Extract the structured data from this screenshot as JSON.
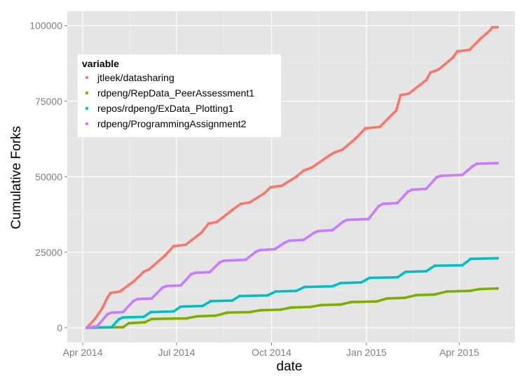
{
  "chart_data": {
    "type": "line",
    "xlabel": "date",
    "ylabel": "Cumulative Forks",
    "x_ticks": [
      {
        "label": "Apr 2014",
        "date": "2014-04-01"
      },
      {
        "label": "Jul 2014",
        "date": "2014-07-01"
      },
      {
        "label": "Oct 2014",
        "date": "2014-10-01"
      },
      {
        "label": "Jan 2015",
        "date": "2015-01-01"
      },
      {
        "label": "Apr 2015",
        "date": "2015-04-01"
      }
    ],
    "y_ticks": [
      {
        "label": "0",
        "value": 0
      },
      {
        "label": "25000",
        "value": 25000
      },
      {
        "label": "50000",
        "value": 50000
      },
      {
        "label": "75000",
        "value": 75000
      },
      {
        "label": "100000",
        "value": 100000
      }
    ],
    "xlim": [
      "2014-03-17",
      "2015-05-25"
    ],
    "ylim": [
      -4900,
      104800
    ],
    "grid": true,
    "legend": {
      "title": "variable",
      "position": "top-left"
    },
    "series": [
      {
        "name": "jtleek/datasharing",
        "color": "#F8766D",
        "points": [
          [
            "2014-04-05",
            0
          ],
          [
            "2014-04-13",
            3000
          ],
          [
            "2014-04-20",
            6500
          ],
          [
            "2014-04-25",
            10000
          ],
          [
            "2014-04-28",
            11500
          ],
          [
            "2014-05-07",
            12000
          ],
          [
            "2014-05-21",
            15500
          ],
          [
            "2014-05-30",
            18500
          ],
          [
            "2014-06-05",
            19500
          ],
          [
            "2014-06-20",
            24000
          ],
          [
            "2014-06-28",
            27000
          ],
          [
            "2014-07-10",
            27500
          ],
          [
            "2014-07-25",
            31500
          ],
          [
            "2014-08-01",
            34500
          ],
          [
            "2014-08-09",
            35000
          ],
          [
            "2014-08-24",
            39000
          ],
          [
            "2014-09-01",
            41000
          ],
          [
            "2014-09-10",
            41500
          ],
          [
            "2014-09-24",
            44500
          ],
          [
            "2014-09-30",
            46500
          ],
          [
            "2014-10-11",
            47000
          ],
          [
            "2014-10-25",
            50000
          ],
          [
            "2014-11-01",
            52000
          ],
          [
            "2014-11-09",
            53000
          ],
          [
            "2014-11-26",
            57000
          ],
          [
            "2014-12-01",
            58000
          ],
          [
            "2014-12-09",
            59000
          ],
          [
            "2014-12-21",
            62500
          ],
          [
            "2014-12-31",
            66000
          ],
          [
            "2015-01-14",
            66500
          ],
          [
            "2015-01-30",
            72000
          ],
          [
            "2015-02-03",
            77000
          ],
          [
            "2015-02-11",
            77500
          ],
          [
            "2015-02-28",
            82000
          ],
          [
            "2015-03-04",
            84500
          ],
          [
            "2015-03-12",
            85500
          ],
          [
            "2015-03-26",
            89500
          ],
          [
            "2015-03-30",
            91500
          ],
          [
            "2015-04-11",
            92000
          ],
          [
            "2015-04-21",
            95500
          ],
          [
            "2015-05-01",
            98500
          ],
          [
            "2015-05-03",
            99500
          ],
          [
            "2015-05-08",
            99500
          ]
        ]
      },
      {
        "name": "rdpeng/RepData_PeerAssessment1",
        "color": "#7CAE00",
        "points": [
          [
            "2014-04-05",
            0
          ],
          [
            "2014-05-10",
            200
          ],
          [
            "2014-05-16",
            1500
          ],
          [
            "2014-05-31",
            1800
          ],
          [
            "2014-06-07",
            2900
          ],
          [
            "2014-07-11",
            3100
          ],
          [
            "2014-07-21",
            3800
          ],
          [
            "2014-08-08",
            4000
          ],
          [
            "2014-08-19",
            5000
          ],
          [
            "2014-09-10",
            5200
          ],
          [
            "2014-09-20",
            5800
          ],
          [
            "2014-10-10",
            6000
          ],
          [
            "2014-10-20",
            6700
          ],
          [
            "2014-11-08",
            6900
          ],
          [
            "2014-11-18",
            7500
          ],
          [
            "2014-12-07",
            7700
          ],
          [
            "2014-12-17",
            8500
          ],
          [
            "2015-01-11",
            8700
          ],
          [
            "2015-01-21",
            9700
          ],
          [
            "2015-02-07",
            9900
          ],
          [
            "2015-02-18",
            10800
          ],
          [
            "2015-03-08",
            11000
          ],
          [
            "2015-03-20",
            12000
          ],
          [
            "2015-04-11",
            12200
          ],
          [
            "2015-04-21",
            12800
          ],
          [
            "2015-05-08",
            13000
          ]
        ]
      },
      {
        "name": "repos/rdpeng/ExData_Plotting1",
        "color": "#00BFC4",
        "points": [
          [
            "2014-04-05",
            0
          ],
          [
            "2014-04-29",
            200
          ],
          [
            "2014-05-06",
            2800
          ],
          [
            "2014-05-10",
            3400
          ],
          [
            "2014-05-30",
            3600
          ],
          [
            "2014-06-06",
            5200
          ],
          [
            "2014-06-28",
            5400
          ],
          [
            "2014-07-05",
            7000
          ],
          [
            "2014-07-26",
            7200
          ],
          [
            "2014-08-03",
            8800
          ],
          [
            "2014-08-24",
            9000
          ],
          [
            "2014-08-31",
            10500
          ],
          [
            "2014-09-27",
            10700
          ],
          [
            "2014-10-05",
            12000
          ],
          [
            "2014-10-25",
            12200
          ],
          [
            "2014-11-02",
            13500
          ],
          [
            "2014-11-29",
            13700
          ],
          [
            "2014-12-07",
            14800
          ],
          [
            "2014-12-27",
            15000
          ],
          [
            "2015-01-04",
            16500
          ],
          [
            "2015-01-31",
            16700
          ],
          [
            "2015-02-08",
            18500
          ],
          [
            "2015-02-28",
            18700
          ],
          [
            "2015-03-08",
            20500
          ],
          [
            "2015-04-04",
            20700
          ],
          [
            "2015-04-12",
            22800
          ],
          [
            "2015-05-08",
            23000
          ]
        ]
      },
      {
        "name": "rdpeng/ProgrammingAssignment2",
        "color": "#C77CFF",
        "points": [
          [
            "2014-04-05",
            0
          ],
          [
            "2014-04-15",
            500
          ],
          [
            "2014-04-25",
            4500
          ],
          [
            "2014-04-29",
            5000
          ],
          [
            "2014-05-10",
            5200
          ],
          [
            "2014-05-20",
            8800
          ],
          [
            "2014-05-24",
            9500
          ],
          [
            "2014-06-07",
            9700
          ],
          [
            "2014-06-17",
            13200
          ],
          [
            "2014-06-21",
            13800
          ],
          [
            "2014-07-05",
            14000
          ],
          [
            "2014-07-15",
            17700
          ],
          [
            "2014-07-19",
            18200
          ],
          [
            "2014-08-02",
            18400
          ],
          [
            "2014-08-12",
            21700
          ],
          [
            "2014-08-16",
            22200
          ],
          [
            "2014-09-06",
            22500
          ],
          [
            "2014-09-16",
            25200
          ],
          [
            "2014-09-20",
            25700
          ],
          [
            "2014-10-04",
            26000
          ],
          [
            "2014-10-14",
            28200
          ],
          [
            "2014-10-18",
            28800
          ],
          [
            "2014-11-01",
            29100
          ],
          [
            "2014-11-11",
            31400
          ],
          [
            "2014-11-15",
            32000
          ],
          [
            "2014-11-29",
            32300
          ],
          [
            "2014-12-09",
            35000
          ],
          [
            "2014-12-13",
            35700
          ],
          [
            "2015-01-03",
            36000
          ],
          [
            "2015-01-13",
            40300
          ],
          [
            "2015-01-17",
            41000
          ],
          [
            "2015-01-31",
            41300
          ],
          [
            "2015-02-10",
            45000
          ],
          [
            "2015-02-14",
            45700
          ],
          [
            "2015-02-28",
            46000
          ],
          [
            "2015-03-10",
            49800
          ],
          [
            "2015-03-14",
            50300
          ],
          [
            "2015-04-04",
            50600
          ],
          [
            "2015-04-14",
            53500
          ],
          [
            "2015-04-18",
            54300
          ],
          [
            "2015-05-08",
            54500
          ]
        ]
      }
    ]
  }
}
